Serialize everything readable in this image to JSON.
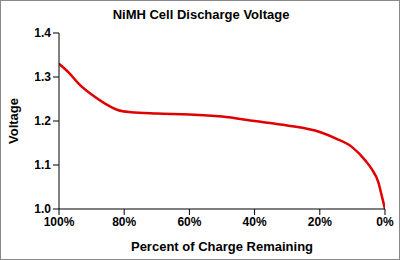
{
  "chart_data": {
    "type": "line",
    "title": "NiMH Cell Discharge Voltage",
    "xlabel": "Percent of Charge Remaining",
    "ylabel": "Voltage",
    "x": [
      100,
      97,
      94,
      90,
      86,
      82,
      78,
      70,
      60,
      50,
      40,
      30,
      20,
      15,
      10,
      6,
      4,
      2,
      1,
      0
    ],
    "values": [
      1.33,
      1.31,
      1.285,
      1.26,
      1.24,
      1.225,
      1.22,
      1.217,
      1.215,
      1.21,
      1.2,
      1.19,
      1.175,
      1.16,
      1.14,
      1.11,
      1.09,
      1.06,
      1.03,
      1.0
    ],
    "color": "#e00000",
    "xlim": [
      100,
      0
    ],
    "xticks": [
      {
        "value": 100,
        "label": "100%"
      },
      {
        "value": 80,
        "label": "80%"
      },
      {
        "value": 60,
        "label": "60%"
      },
      {
        "value": 40,
        "label": "40%"
      },
      {
        "value": 20,
        "label": "20%"
      },
      {
        "value": 0,
        "label": "0%"
      }
    ],
    "ylim": [
      1,
      1.4
    ],
    "yticks": [
      {
        "value": 1,
        "label": "1.0"
      },
      1.1,
      1.2,
      1.3,
      1.4
    ],
    "grid": false
  }
}
